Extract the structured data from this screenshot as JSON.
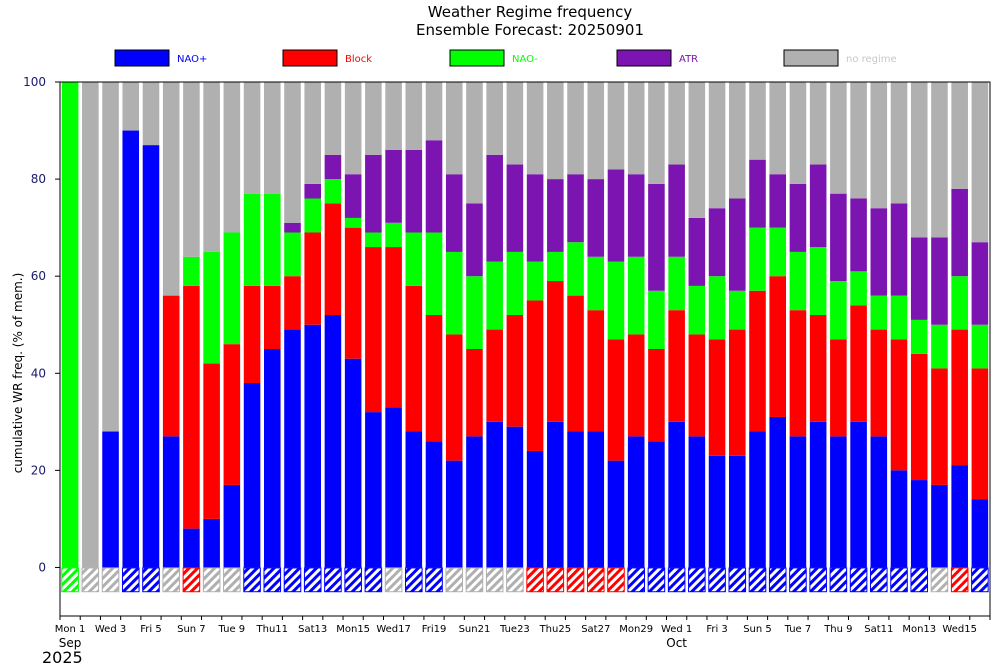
{
  "chart_data": {
    "type": "bar",
    "stacked": true,
    "title": "Weather Regime frequency",
    "subtitle": "Ensemble Forecast: 20250901",
    "ylabel": "cumulative WR freq. (% of mem.)",
    "ylim": [
      -10,
      100
    ],
    "yticks": [
      0,
      20,
      40,
      60,
      80,
      100
    ],
    "grid": false,
    "legend_position": "top",
    "x_tick_labels": [
      {
        "day": 0,
        "label": "Mon 1",
        "color": "#000000"
      },
      {
        "day": 2,
        "label": "Wed 3",
        "color": "#000000"
      },
      {
        "day": 4,
        "label": "Fri 5",
        "color": "#000000"
      },
      {
        "day": 6,
        "label": "Sun 7",
        "color": "#ff0000"
      },
      {
        "day": 8,
        "label": "Tue 9",
        "color": "#000000"
      },
      {
        "day": 10,
        "label": "Thu11",
        "color": "#000000"
      },
      {
        "day": 12,
        "label": "Sat13",
        "color": "#000000"
      },
      {
        "day": 14,
        "label": "Mon15",
        "color": "#000000"
      },
      {
        "day": 16,
        "label": "Wed17",
        "color": "#000000"
      },
      {
        "day": 18,
        "label": "Fri19",
        "color": "#000000"
      },
      {
        "day": 20,
        "label": "Sun21",
        "color": "#ff0000"
      },
      {
        "day": 22,
        "label": "Tue23",
        "color": "#000000"
      },
      {
        "day": 24,
        "label": "Thu25",
        "color": "#000000"
      },
      {
        "day": 26,
        "label": "Sat27",
        "color": "#000000"
      },
      {
        "day": 28,
        "label": "Mon29",
        "color": "#000000"
      },
      {
        "day": 30,
        "label": "Wed 1",
        "color": "#000000"
      },
      {
        "day": 32,
        "label": "Fri 3",
        "color": "#000000"
      },
      {
        "day": 34,
        "label": "Sun 5",
        "color": "#ff0000"
      },
      {
        "day": 36,
        "label": "Tue 7",
        "color": "#000000"
      },
      {
        "day": 38,
        "label": "Thu 9",
        "color": "#000000"
      },
      {
        "day": 40,
        "label": "Sat11",
        "color": "#000000"
      },
      {
        "day": 42,
        "label": "Mon13",
        "color": "#000000"
      },
      {
        "day": 44,
        "label": "Wed15",
        "color": "#000000"
      }
    ],
    "month_labels": [
      {
        "day": 0,
        "label": "Sep"
      },
      {
        "day": 30,
        "label": "Oct"
      }
    ],
    "year_label": "2025",
    "categories": [
      "2025-09-01",
      "2025-09-02",
      "2025-09-03",
      "2025-09-04",
      "2025-09-05",
      "2025-09-06",
      "2025-09-07",
      "2025-09-08",
      "2025-09-09",
      "2025-09-10",
      "2025-09-11",
      "2025-09-12",
      "2025-09-13",
      "2025-09-14",
      "2025-09-15",
      "2025-09-16",
      "2025-09-17",
      "2025-09-18",
      "2025-09-19",
      "2025-09-20",
      "2025-09-21",
      "2025-09-22",
      "2025-09-23",
      "2025-09-24",
      "2025-09-25",
      "2025-09-26",
      "2025-09-27",
      "2025-09-28",
      "2025-09-29",
      "2025-09-30",
      "2025-10-01",
      "2025-10-02",
      "2025-10-03",
      "2025-10-04",
      "2025-10-05",
      "2025-10-06",
      "2025-10-07",
      "2025-10-08",
      "2025-10-09",
      "2025-10-10",
      "2025-10-11",
      "2025-10-12",
      "2025-10-13",
      "2025-10-14",
      "2025-10-15",
      "2025-10-16"
    ],
    "series": [
      {
        "name": "NAO+",
        "color": "#0000ff",
        "values": [
          0,
          0,
          28,
          90,
          87,
          27,
          8,
          10,
          17,
          38,
          45,
          49,
          50,
          52,
          43,
          32,
          33,
          28,
          26,
          22,
          27,
          30,
          29,
          24,
          30,
          28,
          28,
          22,
          27,
          26,
          30,
          27,
          23,
          23,
          28,
          31,
          27,
          30,
          27,
          30,
          27,
          20,
          18,
          17,
          21,
          14
        ]
      },
      {
        "name": "Block",
        "color": "#ff0000",
        "values": [
          0,
          0,
          0,
          0,
          0,
          29,
          50,
          32,
          29,
          20,
          13,
          11,
          19,
          23,
          27,
          34,
          33,
          30,
          26,
          26,
          18,
          19,
          23,
          31,
          29,
          28,
          25,
          25,
          21,
          19,
          23,
          21,
          24,
          26,
          29,
          29,
          26,
          22,
          20,
          24,
          22,
          27,
          26,
          24,
          28,
          27
        ]
      },
      {
        "name": "NAO-",
        "color": "#00ff00",
        "values": [
          100,
          0,
          0,
          0,
          0,
          0,
          6,
          23,
          23,
          19,
          19,
          9,
          7,
          5,
          2,
          3,
          5,
          11,
          17,
          17,
          15,
          14,
          13,
          8,
          6,
          11,
          11,
          16,
          16,
          12,
          11,
          10,
          13,
          8,
          13,
          10,
          12,
          14,
          12,
          7,
          7,
          9,
          7,
          9,
          11,
          9
        ]
      },
      {
        "name": "ATR",
        "color": "#7b14b0",
        "values": [
          0,
          0,
          0,
          0,
          0,
          0,
          0,
          0,
          0,
          0,
          0,
          2,
          3,
          5,
          9,
          16,
          15,
          17,
          19,
          16,
          15,
          22,
          18,
          18,
          15,
          14,
          16,
          19,
          17,
          22,
          19,
          14,
          14,
          19,
          14,
          11,
          14,
          17,
          18,
          15,
          18,
          19,
          17,
          18,
          18,
          17
        ]
      },
      {
        "name": "no regime",
        "color": "#b0b0b0",
        "values": [
          0,
          100,
          72,
          10,
          13,
          44,
          36,
          35,
          31,
          23,
          23,
          29,
          21,
          15,
          19,
          15,
          14,
          14,
          12,
          19,
          25,
          15,
          17,
          19,
          20,
          19,
          20,
          18,
          19,
          21,
          17,
          28,
          26,
          24,
          16,
          19,
          21,
          17,
          23,
          24,
          26,
          25,
          32,
          32,
          22,
          33
        ]
      }
    ],
    "dominant_regime_marker": {
      "label_colors": {
        "NAO+": "#0000ff",
        "Block": "#ff0000",
        "NAO-": "#00ff00",
        "no regime": "#b0b0b0"
      },
      "values": [
        "NAO-",
        "no regime",
        "no regime",
        "NAO+",
        "NAO+",
        "no regime",
        "Block",
        "no regime",
        "no regime",
        "NAO+",
        "NAO+",
        "NAO+",
        "NAO+",
        "NAO+",
        "NAO+",
        "NAO+",
        "no regime",
        "NAO+",
        "NAO+",
        "no regime",
        "no regime",
        "no regime",
        "no regime",
        "Block",
        "Block",
        "Block",
        "Block",
        "Block",
        "NAO+",
        "NAO+",
        "NAO+",
        "NAO+",
        "NAO+",
        "NAO+",
        "NAO+",
        "NAO+",
        "NAO+",
        "NAO+",
        "NAO+",
        "NAO+",
        "NAO+",
        "NAO+",
        "NAO+",
        "no regime",
        "Block",
        "NAO+"
      ]
    }
  }
}
